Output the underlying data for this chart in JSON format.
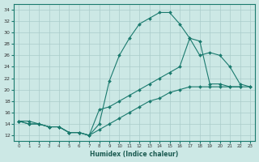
{
  "xlabel": "Humidex (Indice chaleur)",
  "ylabel": "",
  "xlim": [
    -0.5,
    23.5
  ],
  "ylim": [
    11,
    35
  ],
  "yticks": [
    12,
    14,
    16,
    18,
    20,
    22,
    24,
    26,
    28,
    30,
    32,
    34
  ],
  "xticks": [
    0,
    1,
    2,
    3,
    4,
    5,
    6,
    7,
    8,
    9,
    10,
    11,
    12,
    13,
    14,
    15,
    16,
    17,
    18,
    19,
    20,
    21,
    22,
    23
  ],
  "bg_color": "#cce8e5",
  "grid_color": "#aaccca",
  "line_color": "#1a7a6e",
  "line1_x": [
    0,
    1,
    2,
    3,
    4,
    5,
    6,
    7,
    8,
    9,
    10,
    11,
    12,
    13,
    14,
    15,
    16,
    17,
    18,
    19,
    20,
    21,
    22
  ],
  "line1_y": [
    14.5,
    14.5,
    14.0,
    13.5,
    13.5,
    12.5,
    12.5,
    12.0,
    14.0,
    21.5,
    26.0,
    29.0,
    31.5,
    32.5,
    33.5,
    33.5,
    31.5,
    29.0,
    28.5,
    21.0,
    21.0,
    20.5,
    20.5
  ],
  "line2_x": [
    0,
    1,
    2,
    3,
    4,
    5,
    6,
    7,
    8,
    9,
    10,
    11,
    12,
    13,
    14,
    15,
    16,
    17,
    18,
    19,
    20,
    21,
    22,
    23
  ],
  "line2_y": [
    14.5,
    14.0,
    14.0,
    13.5,
    13.5,
    12.5,
    12.5,
    12.0,
    16.5,
    17.0,
    18.0,
    19.0,
    20.0,
    21.0,
    22.0,
    23.0,
    24.0,
    29.0,
    26.0,
    26.5,
    26.0,
    24.0,
    21.0,
    20.5
  ],
  "line3_x": [
    0,
    1,
    2,
    3,
    4,
    5,
    6,
    7,
    8,
    9,
    10,
    11,
    12,
    13,
    14,
    15,
    16,
    17,
    18,
    19,
    20,
    21,
    22,
    23
  ],
  "line3_y": [
    14.5,
    14.0,
    14.0,
    13.5,
    13.5,
    12.5,
    12.5,
    12.0,
    13.0,
    14.0,
    15.0,
    16.0,
    17.0,
    18.0,
    18.5,
    19.5,
    20.0,
    20.5,
    20.5,
    20.5,
    20.5,
    20.5,
    20.5,
    20.5
  ]
}
